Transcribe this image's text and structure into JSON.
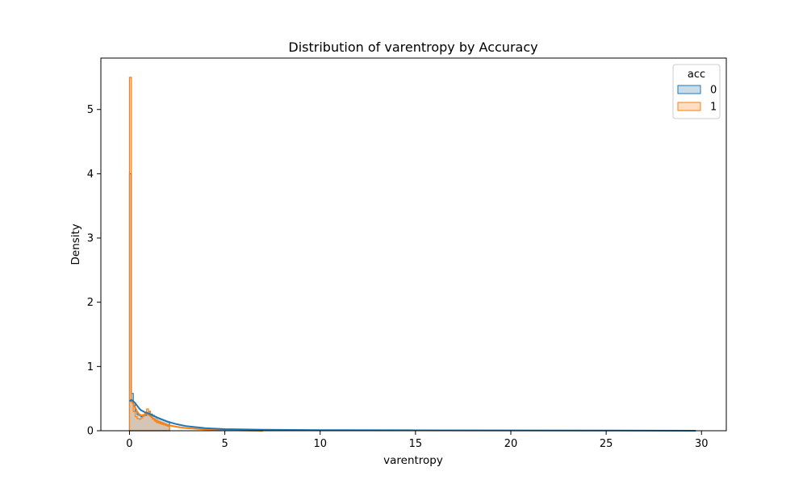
{
  "chart_data": {
    "type": "histogram",
    "title": "Distribution of varentropy by Accuracy",
    "xlabel": "varentropy",
    "ylabel": "Density",
    "xlim": [
      -1.5,
      31.3
    ],
    "ylim": [
      0,
      5.8
    ],
    "x_ticks": [
      0,
      5,
      10,
      15,
      20,
      25,
      30
    ],
    "y_ticks": [
      0,
      1,
      2,
      3,
      4,
      5
    ],
    "grid": false,
    "legend": {
      "title": "acc",
      "placement": "top-right"
    },
    "series": [
      {
        "name": "0",
        "color": "#1f77b4",
        "fill_opacity": 0.25,
        "bin_width": 0.1,
        "bins_start": 0,
        "density": [
          4.0,
          0.58,
          0.4,
          0.3,
          0.25,
          0.24,
          0.22,
          0.23,
          0.24,
          0.27,
          0.3,
          0.26,
          0.24,
          0.22,
          0.2,
          0.19,
          0.18,
          0.17,
          0.16,
          0.15,
          0.14
        ],
        "kde": [
          [
            0.0,
            0.46
          ],
          [
            0.1,
            0.48
          ],
          [
            0.2,
            0.46
          ],
          [
            0.3,
            0.43
          ],
          [
            0.4,
            0.39
          ],
          [
            0.5,
            0.35
          ],
          [
            0.6,
            0.32
          ],
          [
            0.8,
            0.29
          ],
          [
            1.0,
            0.27
          ],
          [
            1.2,
            0.24
          ],
          [
            1.5,
            0.2
          ],
          [
            2.0,
            0.14
          ],
          [
            2.5,
            0.1
          ],
          [
            3.0,
            0.07
          ],
          [
            4.0,
            0.04
          ],
          [
            5.0,
            0.025
          ],
          [
            7.0,
            0.015
          ],
          [
            10.0,
            0.01
          ],
          [
            15.0,
            0.007
          ],
          [
            20.0,
            0.005
          ],
          [
            25.0,
            0.003
          ],
          [
            29.7,
            0.0
          ]
        ]
      },
      {
        "name": "1",
        "color": "#ff7f0e",
        "fill_opacity": 0.25,
        "bin_width": 0.1,
        "bins_start": 0,
        "density": [
          5.5,
          0.47,
          0.3,
          0.22,
          0.19,
          0.18,
          0.2,
          0.23,
          0.28,
          0.34,
          0.29,
          0.23,
          0.18,
          0.15,
          0.13,
          0.12,
          0.11,
          0.1,
          0.09,
          0.08,
          0.07
        ],
        "kde": [
          [
            0.0,
            0.47
          ],
          [
            0.1,
            0.46
          ],
          [
            0.2,
            0.42
          ],
          [
            0.3,
            0.36
          ],
          [
            0.4,
            0.3
          ],
          [
            0.5,
            0.26
          ],
          [
            0.6,
            0.24
          ],
          [
            0.8,
            0.25
          ],
          [
            0.9,
            0.27
          ],
          [
            1.0,
            0.25
          ],
          [
            1.2,
            0.2
          ],
          [
            1.5,
            0.15
          ],
          [
            2.0,
            0.09
          ],
          [
            2.5,
            0.06
          ],
          [
            3.0,
            0.04
          ],
          [
            4.0,
            0.02
          ],
          [
            5.0,
            0.01
          ],
          [
            7.0,
            0.0
          ]
        ]
      }
    ]
  }
}
